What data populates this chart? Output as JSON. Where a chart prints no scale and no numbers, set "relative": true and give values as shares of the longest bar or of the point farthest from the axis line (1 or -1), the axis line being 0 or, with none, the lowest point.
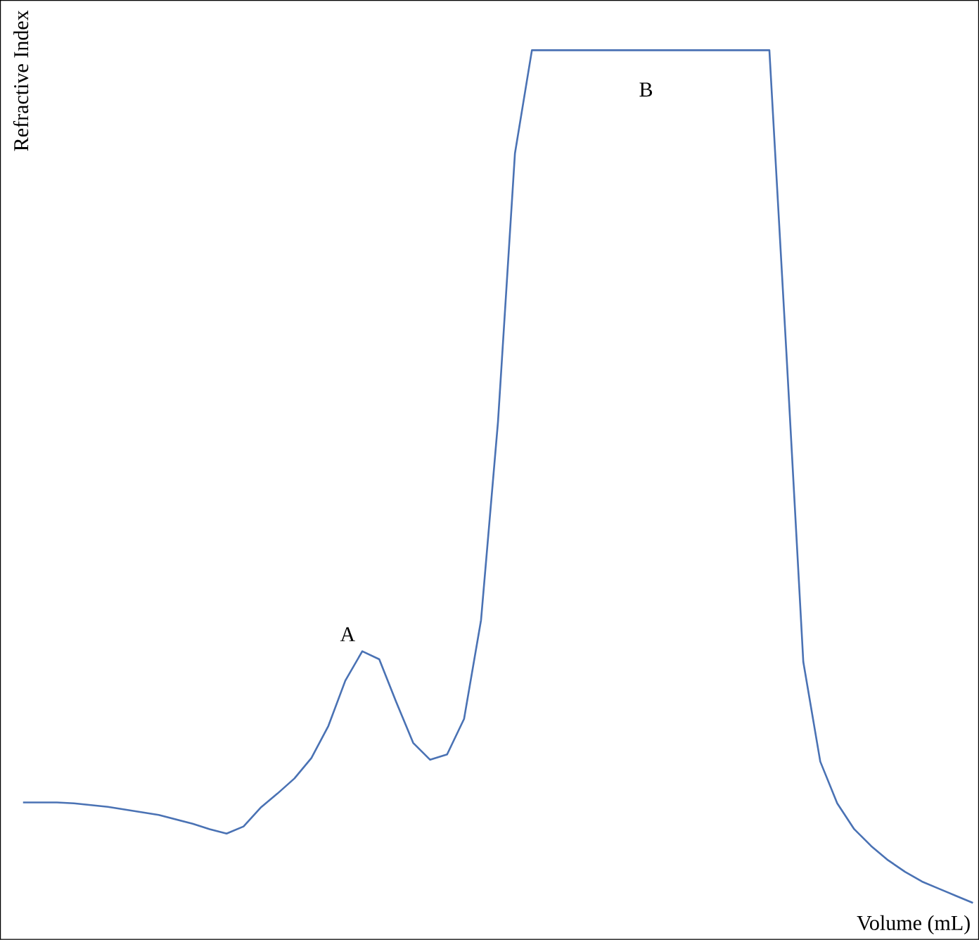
{
  "chart_data": {
    "type": "line",
    "relative": true,
    "xlabel": "Volume (mL)",
    "ylabel": "Refractive Index",
    "color": "#4a72b4",
    "categories": [
      null,
      null,
      null,
      null,
      null,
      null,
      null,
      null,
      null,
      null,
      null,
      null,
      null,
      null,
      null,
      null,
      null,
      null,
      null,
      null,
      null,
      null,
      null,
      null,
      null,
      null,
      null,
      null,
      null,
      null,
      null,
      null,
      null,
      null,
      null,
      null,
      null,
      null,
      null,
      null,
      null,
      null,
      null,
      null,
      null,
      null,
      null,
      null,
      null,
      null,
      null,
      null,
      null,
      null,
      null,
      null,
      null
    ],
    "values": [
      0.154,
      0.154,
      0.154,
      0.153,
      0.151,
      0.149,
      0.146,
      0.143,
      0.14,
      0.135,
      0.13,
      0.124,
      0.119,
      0.127,
      0.148,
      0.164,
      0.181,
      0.204,
      0.24,
      0.291,
      0.324,
      0.315,
      0.267,
      0.221,
      0.202,
      0.208,
      0.248,
      0.359,
      0.582,
      0.884,
      1,
      1,
      1,
      1,
      1,
      1,
      1,
      1,
      1,
      1,
      1,
      1,
      1,
      1,
      1,
      0.661,
      0.312,
      0.2,
      0.153,
      0.124,
      0.105,
      0.089,
      0.076,
      0.065,
      0.057,
      0.049,
      0.041
    ],
    "annotations": [
      "A",
      "B"
    ]
  }
}
